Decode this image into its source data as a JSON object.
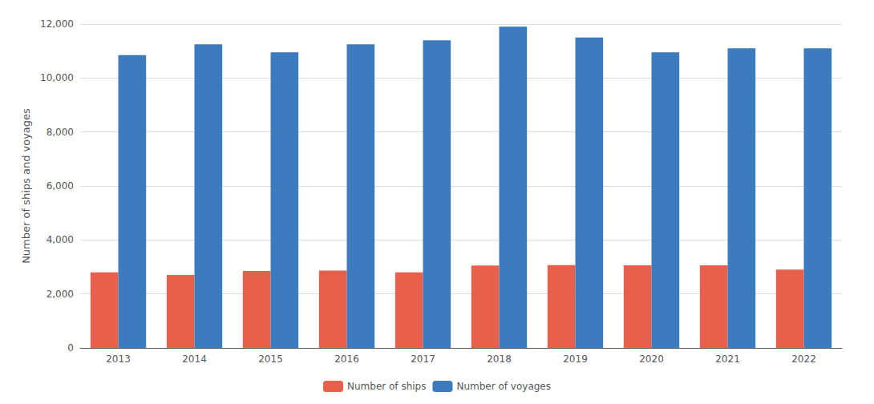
{
  "chart_data": {
    "type": "bar",
    "categories": [
      "2013",
      "2014",
      "2015",
      "2016",
      "2017",
      "2018",
      "2019",
      "2020",
      "2021",
      "2022"
    ],
    "series": [
      {
        "name": "Number of ships",
        "color": "#e8604c",
        "values": [
          2800,
          2700,
          2850,
          2870,
          2800,
          3050,
          3070,
          3060,
          3060,
          2900
        ]
      },
      {
        "name": "Number of voyages",
        "color": "#3d7bbf",
        "values": [
          10850,
          11250,
          10950,
          11250,
          11400,
          11900,
          11500,
          10950,
          11100,
          11100
        ]
      }
    ],
    "ylabel": "Number of ships and voyages",
    "ylim": [
      0,
      12000
    ],
    "yticks": [
      0,
      {
        "value": 2000,
        "label": "2,000"
      },
      {
        "value": 4000,
        "label": "4,000"
      },
      {
        "value": 6000,
        "label": "6,000"
      },
      {
        "value": 8000,
        "label": "8,000"
      },
      {
        "value": 10000,
        "label": "10,000"
      },
      {
        "value": 12000,
        "label": "12,000"
      }
    ],
    "grid": true,
    "legend": "bottom"
  }
}
